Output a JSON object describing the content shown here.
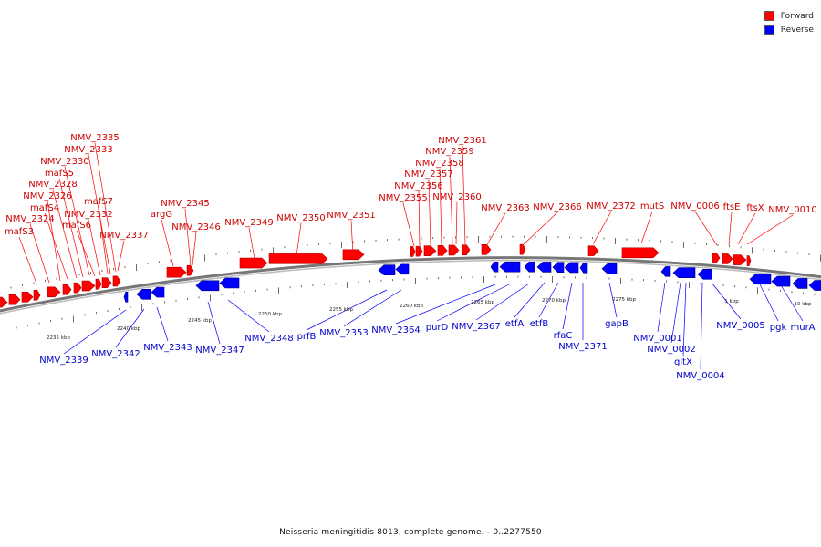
{
  "caption": "Neisseria meningitidis 8013, complete genome. - 0..2277550",
  "legend": [
    {
      "label": "Forward",
      "color": "#ff0000"
    },
    {
      "label": "Reverse",
      "color": "#0000ff"
    }
  ],
  "colors": {
    "forward": "#ff0000",
    "forward_stroke": "#b30000",
    "reverse": "#0000ff",
    "reverse_stroke": "#00008b",
    "backbone": "#777777"
  },
  "scale_labels": [
    "2235 kbp",
    "2240 kbp",
    "2245 kbp",
    "2250 kbp",
    "2255 kbp",
    "2260 kbp",
    "2265 kbp",
    "2270 kbp",
    "2275 kbp",
    "5 kbp",
    "10 kbp"
  ],
  "forward_labels": [
    "mafS3",
    "NMV_2324",
    "NMV_2326",
    "mafS4",
    "NMV_2328",
    "mafS5",
    "NMV_2330",
    "NMV_2332",
    "mafS6",
    "mafS7",
    "NMV_2333",
    "NMV_2335",
    "NMV_2337",
    "argG",
    "NMV_2345",
    "NMV_2346",
    "NMV_2349",
    "NMV_2350",
    "NMV_2351",
    "NMV_2355",
    "NMV_2356",
    "NMV_2357",
    "NMV_2358",
    "NMV_2359",
    "NMV_2360",
    "NMV_2361",
    "NMV_2363",
    "NMV_2366",
    "NMV_2372",
    "mutS",
    "NMV_0006",
    "ftsE",
    "ftsX",
    "NMV_0010"
  ],
  "reverse_labels": [
    "NMV_2339",
    "NMV_2342",
    "NMV_2343",
    "NMV_2347",
    "NMV_2348",
    "prfB",
    "NMV_2353",
    "NMV_2364",
    "purD",
    "NMV_2367",
    "etfA",
    "etfB",
    "rfaC",
    "NMV_2371",
    "gapB",
    "NMV_0001",
    "NMV_0002",
    "gltX",
    "NMV_0004",
    "NMV_0005",
    "pgk",
    "murA"
  ]
}
